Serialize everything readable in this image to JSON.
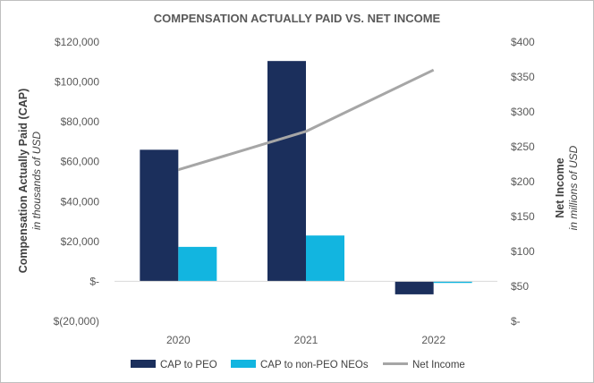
{
  "chart_data": {
    "type": "bar",
    "title": "COMPENSATION ACTUALLY PAID VS. NET INCOME",
    "categories": [
      "2020",
      "2021",
      "2022"
    ],
    "series": [
      {
        "name": "CAP to PEO",
        "kind": "bar",
        "axis": "left",
        "color": "#1b2f5c",
        "values": [
          66000,
          110500,
          -6500
        ]
      },
      {
        "name": "CAP to non-PEO NEOs",
        "kind": "bar",
        "axis": "left",
        "color": "#12b5e0",
        "values": [
          17300,
          23000,
          -800
        ]
      },
      {
        "name": "Net Income",
        "kind": "line",
        "axis": "right",
        "color": "#a6a6a6",
        "values": [
          217,
          272,
          360
        ]
      }
    ],
    "y_left": {
      "label": "Compensation Actually Paid (CAP)",
      "sublabel": "in thousands of USD",
      "range": [
        -20000,
        120000
      ],
      "ticks": [
        120000,
        100000,
        80000,
        60000,
        40000,
        20000,
        0,
        -20000
      ],
      "tick_labels": [
        "$120,000",
        "$100,000",
        "$80,000",
        "$60,000",
        "$40,000",
        "$20,000",
        "$-",
        "$(20,000)"
      ]
    },
    "y_right": {
      "label": "Net Income",
      "sublabel": "in millions of USD",
      "range": [
        0,
        400
      ],
      "ticks": [
        400,
        350,
        300,
        250,
        200,
        150,
        100,
        50,
        0
      ],
      "tick_labels": [
        "$400",
        "$350",
        "$300",
        "$250",
        "$200",
        "$150",
        "$100",
        "$50",
        "$-"
      ]
    },
    "grid": false,
    "legend_position": "bottom"
  }
}
